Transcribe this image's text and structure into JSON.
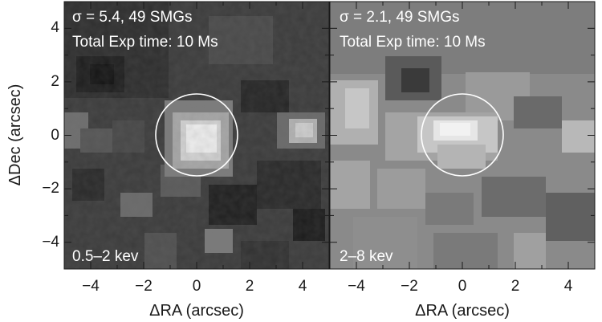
{
  "panels": [
    {
      "id": "soft",
      "stats": "σ = 5.4, 49 SMGs",
      "exposure": "Total Exp time: 10 Ms",
      "band": "0.5–2 kev",
      "source_circle_radius_arcsec": 1.5
    },
    {
      "id": "hard",
      "stats": "σ = 2.1, 49 SMGs",
      "exposure": "Total Exp time: 10 Ms",
      "band": "2–8 kev",
      "source_circle_radius_arcsec": 1.5
    }
  ],
  "axes": {
    "xlabel": "ΔRA (arcsec)",
    "ylabel": "ΔDec (arcsec)",
    "xrange": [
      -5,
      5
    ],
    "yrange": [
      -5,
      5
    ],
    "xticks": [
      "−4",
      "−2",
      "0",
      "2",
      "4"
    ],
    "yticks": [
      "4",
      "2",
      "0",
      "−2",
      "−4"
    ]
  },
  "colors": {
    "soft_background": "#3c3c3c",
    "hard_background": "#8a8a8a",
    "source_peak": "#efefef",
    "circle": "#ffffff"
  }
}
